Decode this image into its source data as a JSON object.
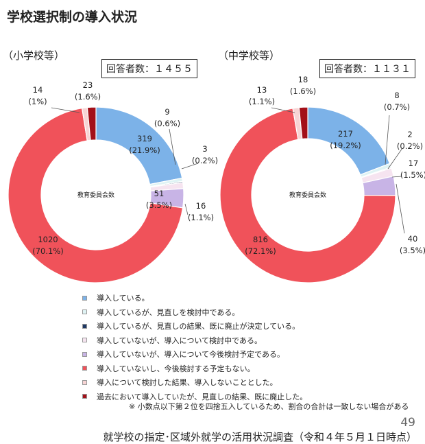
{
  "page": {
    "title": "学校選択制の導入状況",
    "note": "※ 小数点以下第２位を四捨五入しているため、割合の合計は一致しない場合がある",
    "page_number": "49",
    "source": "就学校の指定･区域外就学の活用状況調査（令和４年５月１日時点）"
  },
  "legend": [
    {
      "label": "導入している。",
      "color": "#7cb2e8"
    },
    {
      "label": "導入しているが、見直しを検討中である。",
      "color": "#dff3f4"
    },
    {
      "label": "導入しているが、見直しの結果、既に廃止が決定している。",
      "color": "#1f3864"
    },
    {
      "label": "導入していないが、導入について検討中である。",
      "color": "#f6e4f0"
    },
    {
      "label": "導入していないが、導入について今後検討予定である。",
      "color": "#c8b4e6"
    },
    {
      "label": "導入していないし、今後検討する予定もない。",
      "color": "#f0525a"
    },
    {
      "label": "導入について検討した結果、導入しないこととした。",
      "color": "#f7d4d4"
    },
    {
      "label": "過去において導入していたが、見直しの結果、既に廃止した。",
      "color": "#a31019"
    }
  ],
  "chart_data": [
    {
      "type": "pie",
      "section_label": "（小学校等）",
      "respondents_label": "回答者数：１４５５",
      "center_label": "教育委員会数",
      "slices": [
        {
          "value": 319,
          "percent": "(21.9%)"
        },
        {
          "value": 9,
          "percent": "(0.6%)"
        },
        {
          "value": 3,
          "percent": "(0.2%)"
        },
        {
          "value": 16,
          "percent": "(1.1%)"
        },
        {
          "value": 51,
          "percent": "(3.5%)"
        },
        {
          "value": 1020,
          "percent": "(70.1%)"
        },
        {
          "value": 14,
          "percent": "(1%)"
        },
        {
          "value": 23,
          "percent": "(1.6%)"
        }
      ]
    },
    {
      "type": "pie",
      "section_label": "（中学校等）",
      "respondents_label": "回答者数：１１３１",
      "center_label": "教育委員会数",
      "slices": [
        {
          "value": 217,
          "percent": "(19.2%)"
        },
        {
          "value": 8,
          "percent": "(0.7%)"
        },
        {
          "value": 2,
          "percent": "(0.2%)"
        },
        {
          "value": 17,
          "percent": "(1.5%)"
        },
        {
          "value": 40,
          "percent": "(3.5%)"
        },
        {
          "value": 816,
          "percent": "(72.1%)"
        },
        {
          "value": 13,
          "percent": "(1.1%)"
        },
        {
          "value": 18,
          "percent": "(1.6%)"
        }
      ]
    }
  ]
}
